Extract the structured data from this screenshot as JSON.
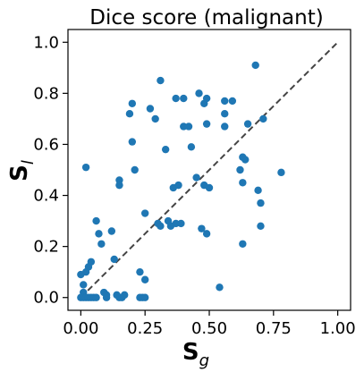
{
  "chart_data": {
    "type": "scatter",
    "title": "Dice score (malignant)",
    "xlabel": {
      "main": "S",
      "sub": "g"
    },
    "ylabel": {
      "main": "S",
      "sub": "l"
    },
    "xlim": [
      -0.05,
      1.05
    ],
    "ylim": [
      -0.05,
      1.05
    ],
    "xticks": [
      "0.00",
      "0.25",
      "0.50",
      "0.75",
      "1.00"
    ],
    "yticks": [
      "0.0",
      "0.2",
      "0.4",
      "0.6",
      "0.8",
      "1.0"
    ],
    "grid": false,
    "point_color": "#1f77b4",
    "reference_line": {
      "from": [
        0,
        0
      ],
      "to": [
        1,
        1
      ],
      "style": "dashed",
      "color": "#444444"
    },
    "points": [
      [
        0.02,
        0.51
      ],
      [
        0.0,
        0.09
      ],
      [
        0.01,
        0.05
      ],
      [
        0.01,
        0.02
      ],
      [
        0.0,
        0.0
      ],
      [
        0.01,
        0.0
      ],
      [
        0.02,
        0.0
      ],
      [
        0.03,
        0.0
      ],
      [
        0.04,
        0.0
      ],
      [
        0.05,
        0.0
      ],
      [
        0.06,
        0.0
      ],
      [
        0.03,
        0.12
      ],
      [
        0.04,
        0.14
      ],
      [
        0.02,
        0.1
      ],
      [
        0.06,
        0.3
      ],
      [
        0.07,
        0.25
      ],
      [
        0.08,
        0.21
      ],
      [
        0.09,
        0.02
      ],
      [
        0.1,
        0.0
      ],
      [
        0.1,
        0.01
      ],
      [
        0.12,
        0.26
      ],
      [
        0.13,
        0.15
      ],
      [
        0.14,
        0.01
      ],
      [
        0.15,
        0.0
      ],
      [
        0.16,
        0.0
      ],
      [
        0.17,
        0.01
      ],
      [
        0.15,
        0.46
      ],
      [
        0.15,
        0.44
      ],
      [
        0.19,
        0.72
      ],
      [
        0.2,
        0.76
      ],
      [
        0.2,
        0.61
      ],
      [
        0.21,
        0.5
      ],
      [
        0.23,
        0.0
      ],
      [
        0.24,
        0.0
      ],
      [
        0.25,
        0.0
      ],
      [
        0.23,
        0.1
      ],
      [
        0.25,
        0.07
      ],
      [
        0.25,
        0.33
      ],
      [
        0.27,
        0.74
      ],
      [
        0.29,
        0.7
      ],
      [
        0.3,
        0.29
      ],
      [
        0.31,
        0.85
      ],
      [
        0.31,
        0.28
      ],
      [
        0.33,
        0.58
      ],
      [
        0.34,
        0.3
      ],
      [
        0.35,
        0.28
      ],
      [
        0.36,
        0.43
      ],
      [
        0.37,
        0.78
      ],
      [
        0.37,
        0.29
      ],
      [
        0.38,
        0.44
      ],
      [
        0.39,
        0.29
      ],
      [
        0.4,
        0.78
      ],
      [
        0.4,
        0.67
      ],
      [
        0.42,
        0.67
      ],
      [
        0.43,
        0.59
      ],
      [
        0.45,
        0.47
      ],
      [
        0.46,
        0.8
      ],
      [
        0.47,
        0.27
      ],
      [
        0.48,
        0.44
      ],
      [
        0.48,
        0.76
      ],
      [
        0.49,
        0.68
      ],
      [
        0.49,
        0.25
      ],
      [
        0.49,
        0.78
      ],
      [
        0.5,
        0.43
      ],
      [
        0.54,
        0.04
      ],
      [
        0.56,
        0.77
      ],
      [
        0.56,
        0.72
      ],
      [
        0.56,
        0.67
      ],
      [
        0.59,
        0.77
      ],
      [
        0.62,
        0.5
      ],
      [
        0.63,
        0.21
      ],
      [
        0.63,
        0.45
      ],
      [
        0.63,
        0.55
      ],
      [
        0.64,
        0.54
      ],
      [
        0.65,
        0.68
      ],
      [
        0.68,
        0.91
      ],
      [
        0.69,
        0.42
      ],
      [
        0.7,
        0.37
      ],
      [
        0.7,
        0.28
      ],
      [
        0.71,
        0.7
      ],
      [
        0.78,
        0.49
      ]
    ]
  }
}
